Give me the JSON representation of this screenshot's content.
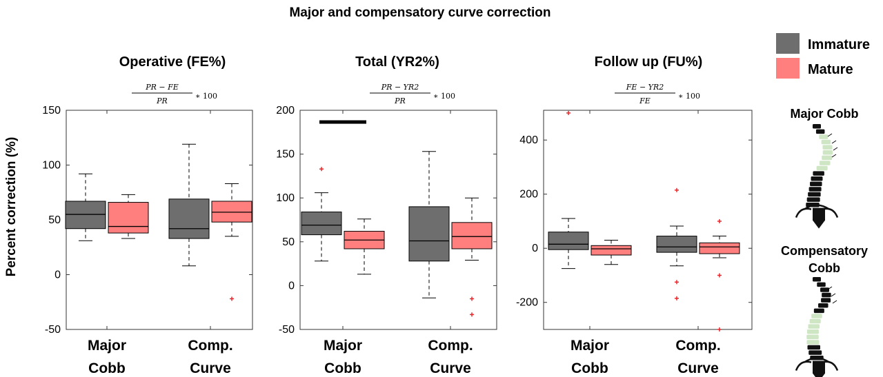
{
  "title": "Major and compensatory curve correction",
  "ylabel": "Percent correction (%)",
  "legend": [
    {
      "label": "Immature",
      "color": "#6e6e6e"
    },
    {
      "label": "Mature",
      "color": "#ff7f7f"
    }
  ],
  "side_labels": {
    "major": "Major Cobb",
    "comp_line1": "Compensatory",
    "comp_line2": "Cobb"
  },
  "colors": {
    "immature": "#6e6e6e",
    "mature": "#ff7f7f",
    "median": "#000000",
    "outlier": "#e8262b",
    "spine": "#111111",
    "highlight": "#cfe6c4"
  },
  "chart_data": [
    {
      "type": "box",
      "title": "Operative (FE%)",
      "formula": {
        "numerator": "PR − FE",
        "denominator": "PR",
        "factor": "∗ 100"
      },
      "categories": [
        "Major Cobb",
        "Comp. Curve"
      ],
      "category_lines": [
        [
          "Major",
          "Cobb"
        ],
        [
          "Comp.",
          "Curve"
        ]
      ],
      "ylim": [
        -50,
        150
      ],
      "yticks": [
        -50,
        0,
        50,
        100,
        150
      ],
      "series": [
        {
          "name": "Immature",
          "boxes": [
            {
              "min": 31,
              "q1": 42,
              "median": 55,
              "q3": 67,
              "max": 92,
              "outliers": []
            },
            {
              "min": 8,
              "q1": 33,
              "median": 42,
              "q3": 69,
              "max": 119,
              "outliers": []
            }
          ]
        },
        {
          "name": "Mature",
          "boxes": [
            {
              "min": 33,
              "q1": 38,
              "median": 44,
              "q3": 66,
              "max": 73,
              "outliers": []
            },
            {
              "min": 35,
              "q1": 48,
              "median": 57,
              "q3": 67,
              "max": 83,
              "outliers": [
                -22
              ]
            }
          ]
        }
      ],
      "significance": []
    },
    {
      "type": "box",
      "title": "Total (YR2%)",
      "formula": {
        "numerator": "PR − YR2",
        "denominator": "PR",
        "factor": "∗ 100"
      },
      "categories": [
        "Major Cobb",
        "Comp. Curve"
      ],
      "category_lines": [
        [
          "Major",
          "Cobb"
        ],
        [
          "Comp.",
          "Curve"
        ]
      ],
      "ylim": [
        -50,
        200
      ],
      "yticks": [
        -50,
        0,
        50,
        100,
        150,
        200
      ],
      "series": [
        {
          "name": "Immature",
          "boxes": [
            {
              "min": 28,
              "q1": 58,
              "median": 69,
              "q3": 84,
              "max": 106,
              "outliers": [
                133
              ]
            },
            {
              "min": -14,
              "q1": 28,
              "median": 51,
              "q3": 90,
              "max": 153,
              "outliers": []
            }
          ]
        },
        {
          "name": "Mature",
          "boxes": [
            {
              "min": 13,
              "q1": 42,
              "median": 52,
              "q3": 62,
              "max": 76,
              "outliers": []
            },
            {
              "min": 29,
              "q1": 42,
              "median": 56,
              "q3": 72,
              "max": 100,
              "outliers": [
                -15,
                -33
              ]
            }
          ]
        }
      ],
      "significance": [
        {
          "category": 0,
          "y": 187
        }
      ]
    },
    {
      "type": "box",
      "title": "Follow up (FU%)",
      "formula": {
        "numerator": "FE − YR2",
        "denominator": "FE",
        "factor": "∗ 100"
      },
      "categories": [
        "Major Cobb",
        "Comp. Curve"
      ],
      "category_lines": [
        [
          "Major",
          "Cobb"
        ],
        [
          "Comp.",
          "Curve"
        ]
      ],
      "ylim": [
        -300,
        510
      ],
      "yticks": [
        -200,
        0,
        200,
        400
      ],
      "series": [
        {
          "name": "Immature",
          "boxes": [
            {
              "min": -75,
              "q1": -5,
              "median": 15,
              "q3": 60,
              "max": 110,
              "outliers": [
                500
              ]
            },
            {
              "min": -65,
              "q1": -15,
              "median": 5,
              "q3": 45,
              "max": 82,
              "outliers": [
                215,
                -125,
                -185
              ]
            }
          ]
        },
        {
          "name": "Mature",
          "boxes": [
            {
              "min": -60,
              "q1": -25,
              "median": -2,
              "q3": 10,
              "max": 30,
              "outliers": []
            },
            {
              "min": -35,
              "q1": -20,
              "median": 5,
              "q3": 20,
              "max": 45,
              "outliers": [
                100,
                -100,
                -300
              ]
            }
          ]
        }
      ],
      "significance": []
    }
  ]
}
